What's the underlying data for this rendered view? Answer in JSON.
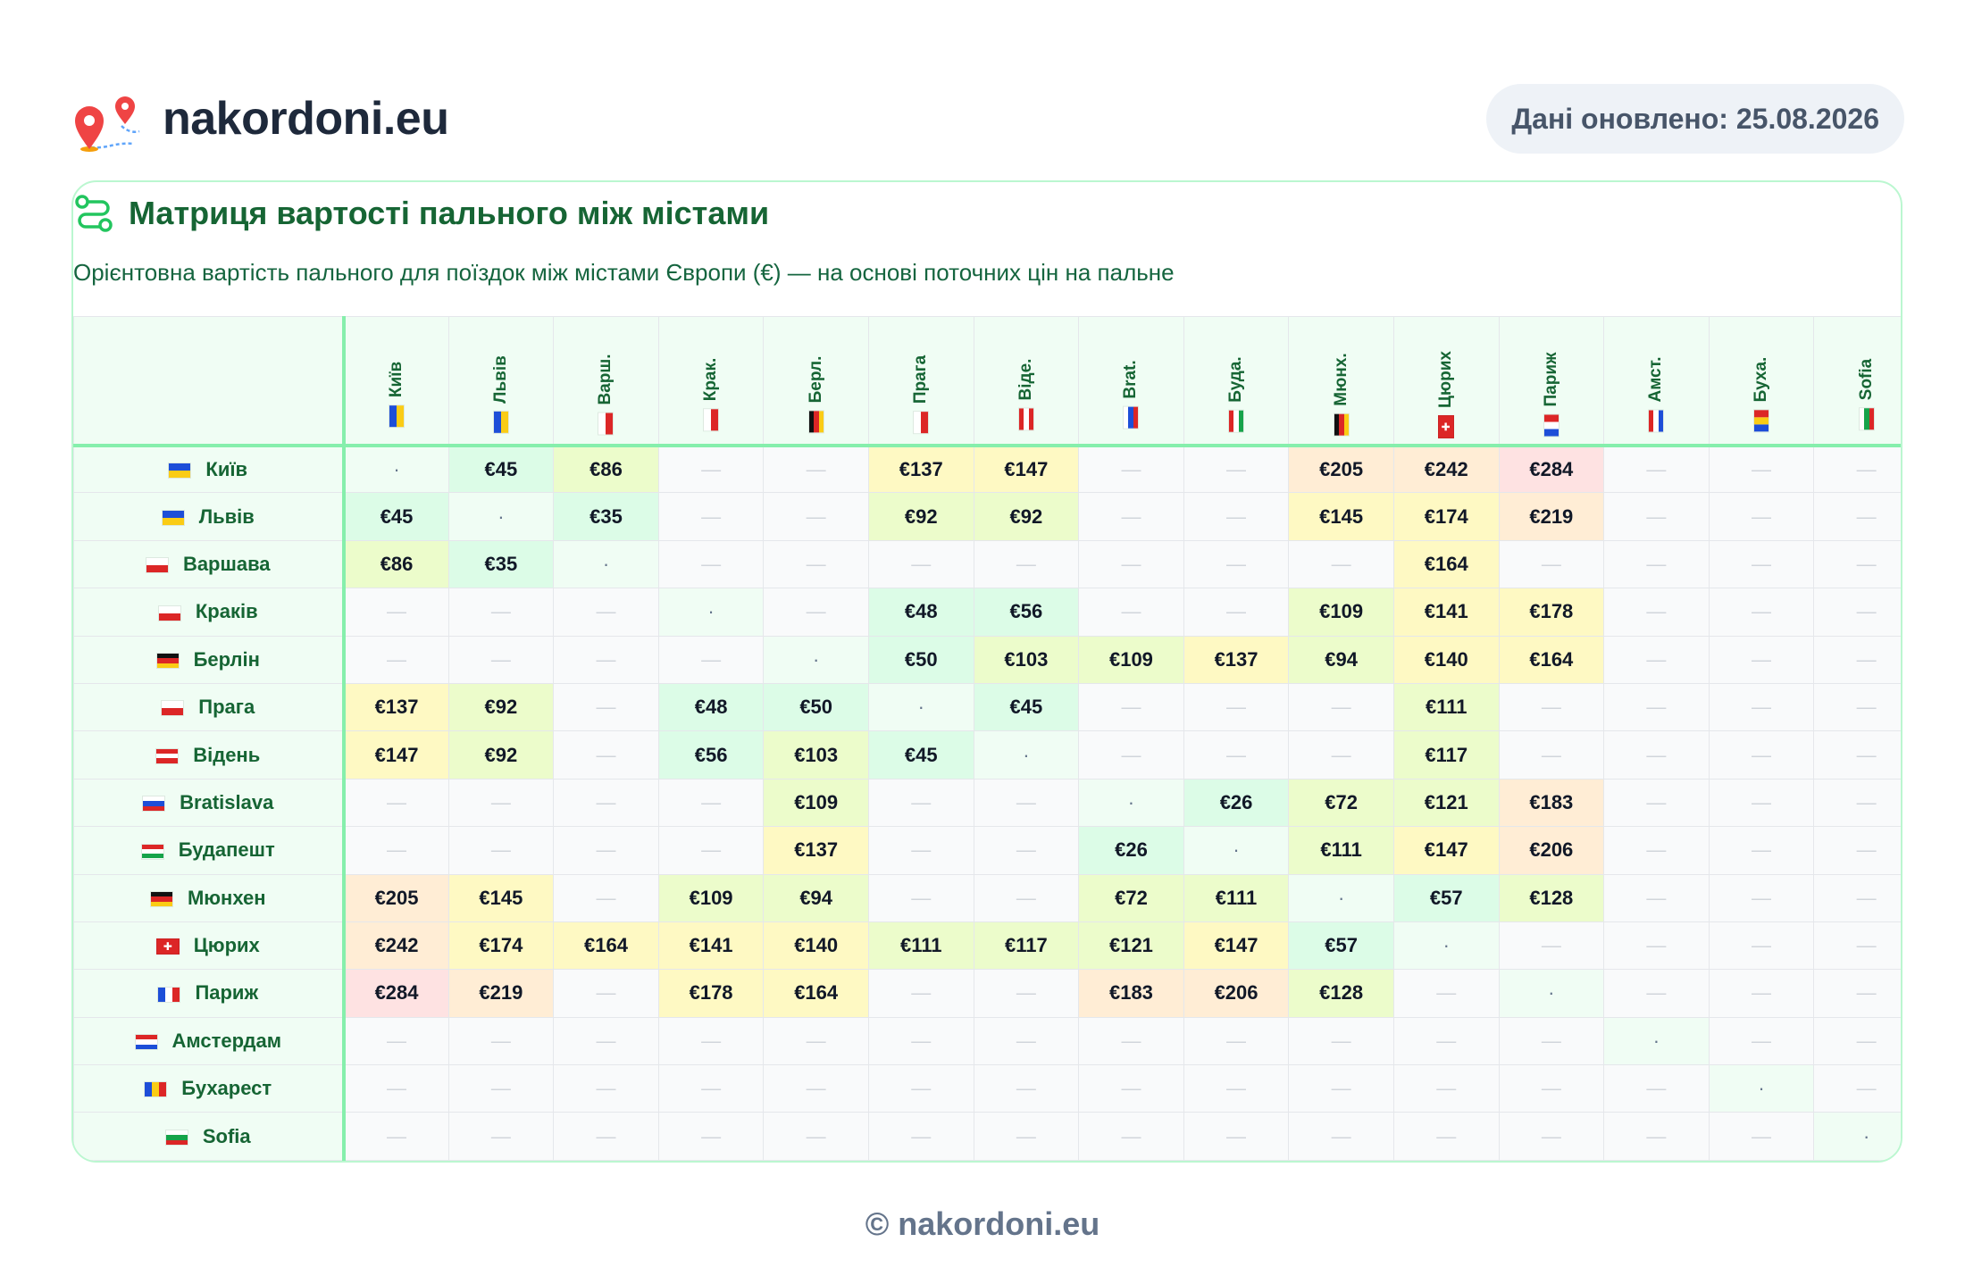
{
  "header": {
    "brand": "nakordoni.eu",
    "updated_label": "Дані оновлено:",
    "updated_date": "25.08.2026"
  },
  "card": {
    "title": "Матриця вартості пального між містами",
    "subtitle": "Орієнтовна вартість пального для поїздок між містами Європи (€) — на основі поточних цін на пальне"
  },
  "colors": {
    "accent": "#166534",
    "border": "#86efac",
    "tier1": "#dcfce7",
    "tier2": "#ecfccb",
    "tier3": "#fef9c3",
    "tier4": "#ffedd5",
    "tier5": "#fee2e2"
  },
  "columns": [
    {
      "label": "Київ",
      "flag": "ua"
    },
    {
      "label": "Львів",
      "flag": "ua"
    },
    {
      "label": "Варш.",
      "flag": "pl"
    },
    {
      "label": "Крак.",
      "flag": "pl"
    },
    {
      "label": "Берл.",
      "flag": "de"
    },
    {
      "label": "Прага",
      "flag": "cz"
    },
    {
      "label": "Віде.",
      "flag": "at"
    },
    {
      "label": "Brat.",
      "flag": "sk"
    },
    {
      "label": "Буда.",
      "flag": "hu"
    },
    {
      "label": "Мюнх.",
      "flag": "de"
    },
    {
      "label": "Цюрих",
      "flag": "ch"
    },
    {
      "label": "Париж",
      "flag": "fr"
    },
    {
      "label": "Амст.",
      "flag": "nl"
    },
    {
      "label": "Буха.",
      "flag": "ro"
    },
    {
      "label": "Sofia",
      "flag": "bg"
    }
  ],
  "rows": [
    {
      "label": "Київ",
      "flag": "ua",
      "cells": [
        "·",
        "€45",
        "€86",
        "—",
        "—",
        "€137",
        "€147",
        "—",
        "—",
        "€205",
        "€242",
        "€284",
        "—",
        "—",
        "—"
      ]
    },
    {
      "label": "Львів",
      "flag": "ua",
      "cells": [
        "€45",
        "·",
        "€35",
        "—",
        "—",
        "€92",
        "€92",
        "—",
        "—",
        "€145",
        "€174",
        "€219",
        "—",
        "—",
        "—"
      ]
    },
    {
      "label": "Варшава",
      "flag": "pl",
      "cells": [
        "€86",
        "€35",
        "·",
        "—",
        "—",
        "—",
        "—",
        "—",
        "—",
        "—",
        "€164",
        "—",
        "—",
        "—",
        "—"
      ]
    },
    {
      "label": "Краків",
      "flag": "pl",
      "cells": [
        "—",
        "—",
        "—",
        "·",
        "—",
        "€48",
        "€56",
        "—",
        "—",
        "€109",
        "€141",
        "€178",
        "—",
        "—",
        "—"
      ]
    },
    {
      "label": "Берлін",
      "flag": "de",
      "cells": [
        "—",
        "—",
        "—",
        "—",
        "·",
        "€50",
        "€103",
        "€109",
        "€137",
        "€94",
        "€140",
        "€164",
        "—",
        "—",
        "—"
      ]
    },
    {
      "label": "Прага",
      "flag": "cz",
      "cells": [
        "€137",
        "€92",
        "—",
        "€48",
        "€50",
        "·",
        "€45",
        "—",
        "—",
        "—",
        "€111",
        "—",
        "—",
        "—",
        "—"
      ]
    },
    {
      "label": "Відень",
      "flag": "at",
      "cells": [
        "€147",
        "€92",
        "—",
        "€56",
        "€103",
        "€45",
        "·",
        "—",
        "—",
        "—",
        "€117",
        "—",
        "—",
        "—",
        "—"
      ]
    },
    {
      "label": "Bratislava",
      "flag": "sk",
      "cells": [
        "—",
        "—",
        "—",
        "—",
        "€109",
        "—",
        "—",
        "·",
        "€26",
        "€72",
        "€121",
        "€183",
        "—",
        "—",
        "—"
      ]
    },
    {
      "label": "Будапешт",
      "flag": "hu",
      "cells": [
        "—",
        "—",
        "—",
        "—",
        "€137",
        "—",
        "—",
        "€26",
        "·",
        "€111",
        "€147",
        "€206",
        "—",
        "—",
        "—"
      ]
    },
    {
      "label": "Мюнхен",
      "flag": "de",
      "cells": [
        "€205",
        "€145",
        "—",
        "€109",
        "€94",
        "—",
        "—",
        "€72",
        "€111",
        "·",
        "€57",
        "€128",
        "—",
        "—",
        "—"
      ]
    },
    {
      "label": "Цюрих",
      "flag": "ch",
      "cells": [
        "€242",
        "€174",
        "€164",
        "€141",
        "€140",
        "€111",
        "€117",
        "€121",
        "€147",
        "€57",
        "·",
        "—",
        "—",
        "—",
        "—"
      ]
    },
    {
      "label": "Париж",
      "flag": "fr",
      "cells": [
        "€284",
        "€219",
        "—",
        "€178",
        "€164",
        "—",
        "—",
        "€183",
        "€206",
        "€128",
        "—",
        "·",
        "—",
        "—",
        "—"
      ]
    },
    {
      "label": "Амстердам",
      "flag": "nl",
      "cells": [
        "—",
        "—",
        "—",
        "—",
        "—",
        "—",
        "—",
        "—",
        "—",
        "—",
        "—",
        "—",
        "·",
        "—",
        "—"
      ]
    },
    {
      "label": "Бухарест",
      "flag": "ro",
      "cells": [
        "—",
        "—",
        "—",
        "—",
        "—",
        "—",
        "—",
        "—",
        "—",
        "—",
        "—",
        "—",
        "—",
        "·",
        "—"
      ]
    },
    {
      "label": "Sofia",
      "flag": "bg",
      "cells": [
        "—",
        "—",
        "—",
        "—",
        "—",
        "—",
        "—",
        "—",
        "—",
        "—",
        "—",
        "—",
        "—",
        "—",
        "·"
      ]
    }
  ],
  "footer": "© nakordoni.eu"
}
